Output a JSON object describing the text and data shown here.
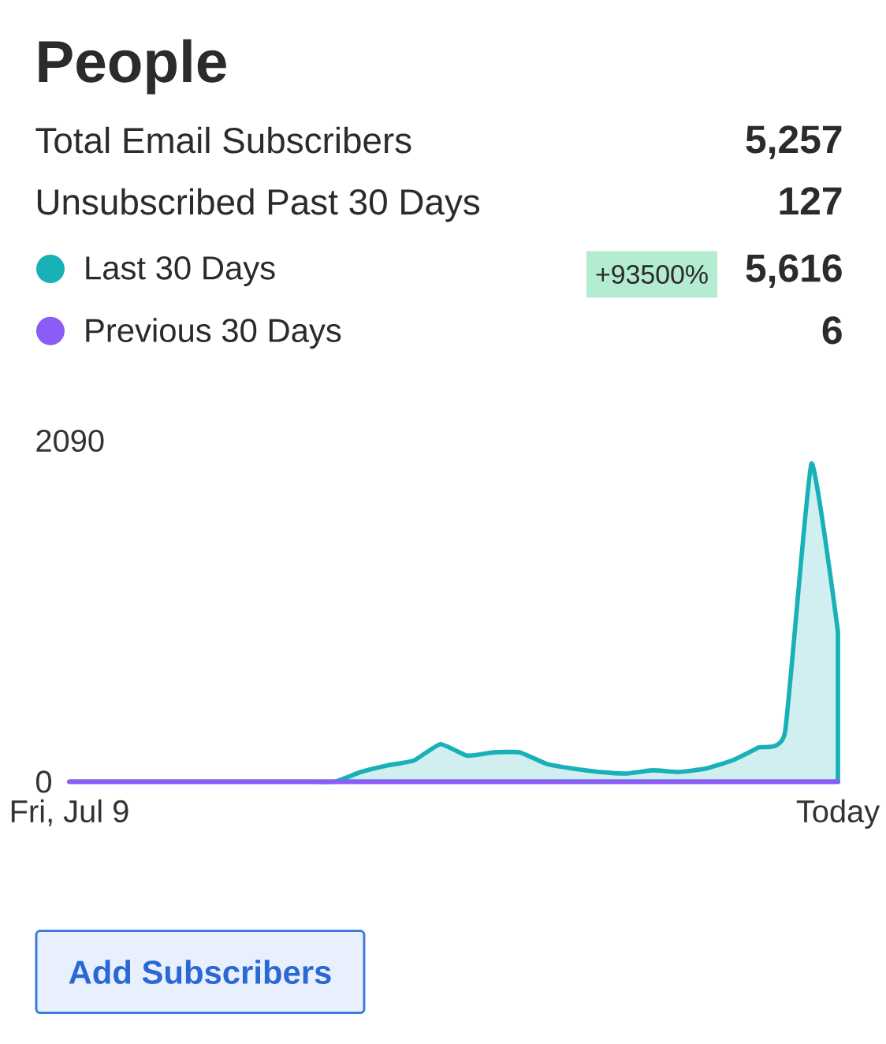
{
  "chart_data": {
    "type": "area",
    "title": "People",
    "categories": [
      "Fri, Jul 9",
      null,
      null,
      null,
      null,
      null,
      null,
      null,
      null,
      null,
      null,
      null,
      null,
      null,
      null,
      null,
      null,
      null,
      null,
      null,
      null,
      null,
      null,
      null,
      null,
      null,
      null,
      null,
      null,
      "Today"
    ],
    "series": [
      {
        "name": "Last 30 Days",
        "color": "#17b1b7",
        "values": [
          0,
          0,
          0,
          0,
          0,
          0,
          0,
          0,
          0,
          0,
          0,
          60,
          100,
          130,
          230,
          160,
          180,
          180,
          110,
          80,
          60,
          50,
          70,
          60,
          80,
          130,
          210,
          300,
          1950,
          920
        ]
      },
      {
        "name": "Previous 30 Days",
        "color": "#8b5cf6",
        "type": "line",
        "values": [
          0,
          0,
          0,
          0,
          0,
          0,
          0,
          0,
          0,
          0,
          0,
          0,
          0,
          0,
          0,
          0,
          0,
          0,
          0,
          0,
          0,
          0,
          0,
          0,
          0,
          0,
          0,
          0,
          0,
          0
        ]
      }
    ],
    "ylim": [
      0,
      2090
    ],
    "yticks": [
      0,
      2090
    ],
    "legend": "top",
    "marker": "none",
    "annotations": [
      "Total Email Subscribers",
      "5,257",
      "Unsubscribed Past 30 Days",
      "127",
      "+93500%",
      "5,616",
      "6",
      "Add Subscribers"
    ]
  }
}
